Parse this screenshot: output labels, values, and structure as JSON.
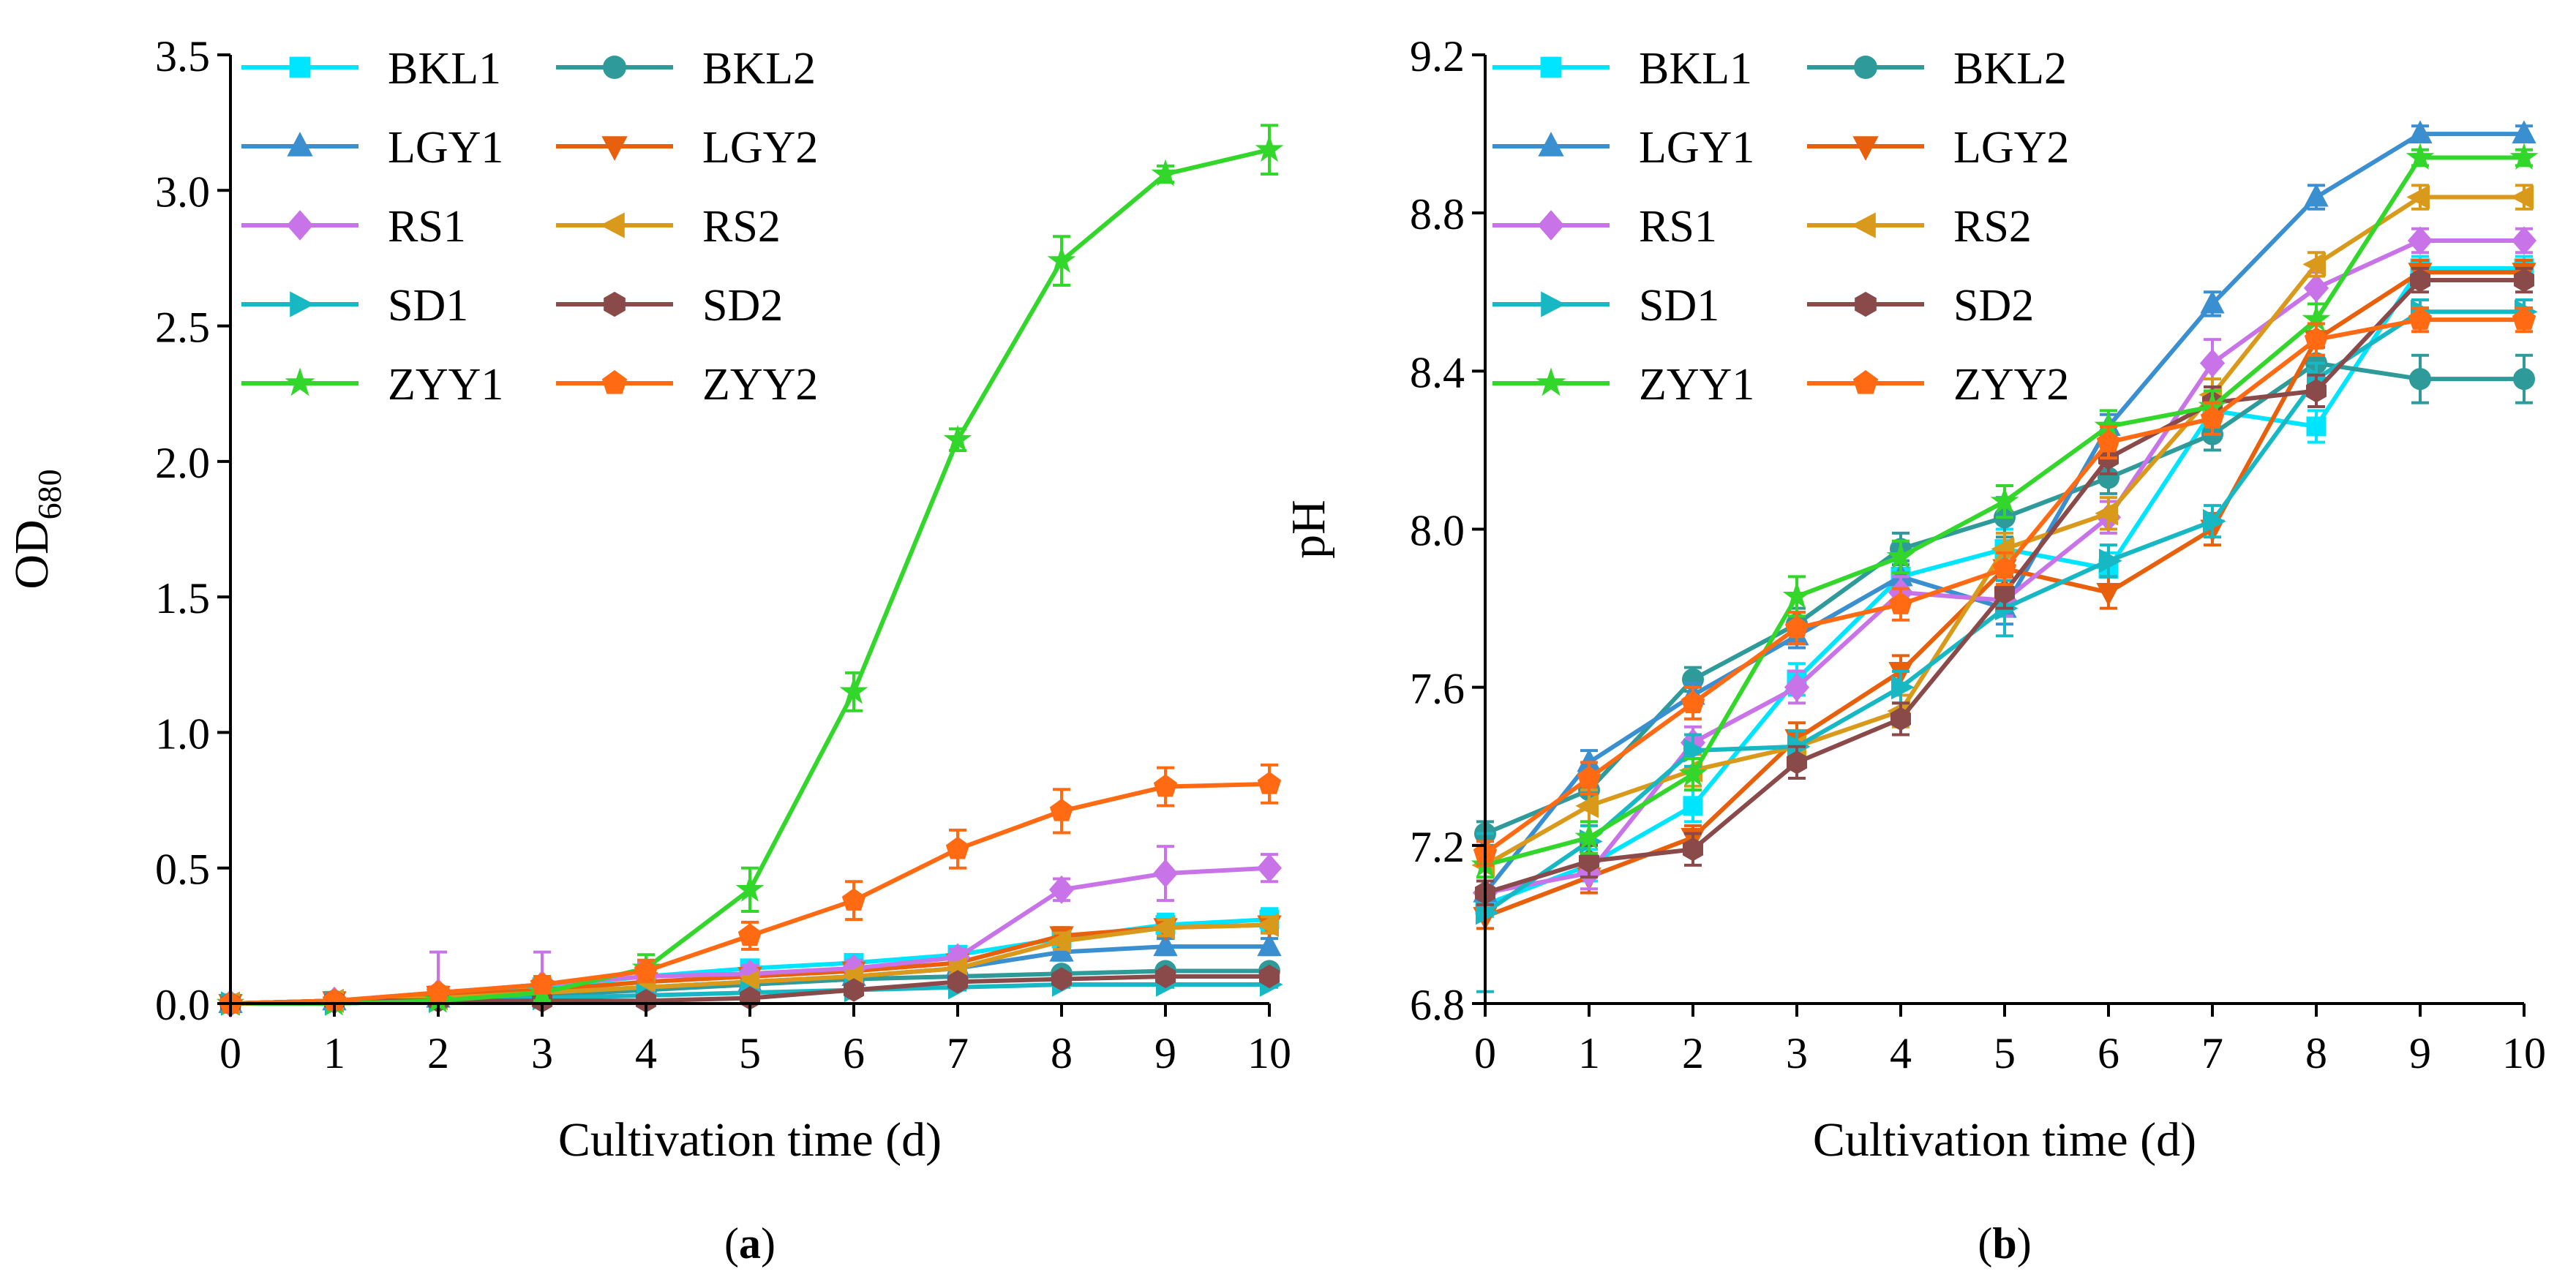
{
  "chart_data": [
    {
      "type": "line",
      "panel_label": "(a)",
      "panel_letter": "a",
      "title": "",
      "xlabel": "Cultivation time (d)",
      "ylabel": "OD",
      "ylabel_subscript": "680",
      "xlim": [
        0,
        10
      ],
      "ylim": [
        0,
        3.5
      ],
      "xticks": [
        "0",
        "1",
        "2",
        "3",
        "4",
        "5",
        "6",
        "7",
        "8",
        "9",
        "10"
      ],
      "yticks": [
        "0.0",
        "0.5",
        "1.0",
        "1.5",
        "2.0",
        "2.5",
        "3.0",
        "3.5"
      ],
      "x": [
        0,
        1,
        2,
        3,
        4,
        5,
        6,
        7,
        8,
        9,
        10
      ],
      "legend_position": "top-left",
      "series": [
        {
          "name": "BKL1",
          "color": "#00E5FF",
          "marker": "square",
          "values": [
            0.0,
            0.01,
            0.03,
            0.06,
            0.1,
            0.13,
            0.15,
            0.18,
            0.24,
            0.29,
            0.31
          ],
          "errors": [
            0.01,
            0.02,
            0.03,
            0.04,
            0.04,
            0.03,
            0.03,
            0.03,
            0.04,
            0.04,
            0.04
          ]
        },
        {
          "name": "BKL2",
          "color": "#2E9A9A",
          "marker": "circle",
          "values": [
            0.0,
            0.01,
            0.02,
            0.03,
            0.05,
            0.07,
            0.09,
            0.1,
            0.11,
            0.12,
            0.12
          ],
          "errors": [
            0.01,
            0.01,
            0.02,
            0.02,
            0.02,
            0.02,
            0.02,
            0.02,
            0.02,
            0.02,
            0.02
          ]
        },
        {
          "name": "LGY1",
          "color": "#3A8FD0",
          "marker": "triangle-up",
          "values": [
            0.0,
            0.01,
            0.02,
            0.04,
            0.06,
            0.08,
            0.1,
            0.13,
            0.19,
            0.21,
            0.21
          ],
          "errors": [
            0.01,
            0.01,
            0.02,
            0.02,
            0.02,
            0.02,
            0.02,
            0.02,
            0.03,
            0.03,
            0.03
          ]
        },
        {
          "name": "LGY2",
          "color": "#E8600C",
          "marker": "triangle-down",
          "values": [
            0.0,
            0.01,
            0.03,
            0.05,
            0.08,
            0.1,
            0.12,
            0.15,
            0.25,
            0.28,
            0.29
          ],
          "errors": [
            0.01,
            0.01,
            0.02,
            0.02,
            0.02,
            0.02,
            0.02,
            0.02,
            0.03,
            0.03,
            0.03
          ]
        },
        {
          "name": "RS1",
          "color": "#C873E8",
          "marker": "diamond",
          "values": [
            0.0,
            0.01,
            0.04,
            0.07,
            0.1,
            0.11,
            0.13,
            0.17,
            0.42,
            0.48,
            0.5
          ],
          "errors": [
            0.01,
            0.02,
            0.15,
            0.12,
            0.05,
            0.03,
            0.03,
            0.03,
            0.04,
            0.1,
            0.05
          ]
        },
        {
          "name": "RS2",
          "color": "#D99A1C",
          "marker": "triangle-left",
          "values": [
            0.0,
            0.01,
            0.02,
            0.04,
            0.06,
            0.08,
            0.1,
            0.13,
            0.23,
            0.28,
            0.29
          ],
          "errors": [
            0.01,
            0.01,
            0.02,
            0.02,
            0.02,
            0.02,
            0.02,
            0.02,
            0.03,
            0.03,
            0.03
          ]
        },
        {
          "name": "SD1",
          "color": "#17B8C4",
          "marker": "triangle-right",
          "values": [
            0.0,
            0.0,
            0.01,
            0.02,
            0.03,
            0.04,
            0.05,
            0.06,
            0.07,
            0.07,
            0.07
          ],
          "errors": [
            0.01,
            0.01,
            0.01,
            0.01,
            0.01,
            0.01,
            0.01,
            0.01,
            0.01,
            0.01,
            0.01
          ]
        },
        {
          "name": "SD2",
          "color": "#8B4A4A",
          "marker": "hexagon",
          "values": [
            0.0,
            0.01,
            0.01,
            0.01,
            0.01,
            0.02,
            0.05,
            0.08,
            0.09,
            0.1,
            0.1
          ],
          "errors": [
            0.01,
            0.01,
            0.01,
            0.01,
            0.01,
            0.01,
            0.02,
            0.02,
            0.02,
            0.02,
            0.02
          ]
        },
        {
          "name": "ZYY1",
          "color": "#33D62B",
          "marker": "star",
          "values": [
            0.0,
            0.0,
            0.01,
            0.04,
            0.13,
            0.42,
            1.15,
            2.08,
            2.74,
            3.06,
            3.15
          ],
          "errors": [
            0.01,
            0.01,
            0.02,
            0.03,
            0.05,
            0.08,
            0.07,
            0.04,
            0.09,
            0.03,
            0.09
          ]
        },
        {
          "name": "ZYY2",
          "color": "#FF6A13",
          "marker": "pentagon",
          "values": [
            0.0,
            0.01,
            0.04,
            0.07,
            0.12,
            0.25,
            0.38,
            0.57,
            0.71,
            0.8,
            0.81
          ],
          "errors": [
            0.01,
            0.01,
            0.02,
            0.03,
            0.04,
            0.05,
            0.07,
            0.07,
            0.08,
            0.07,
            0.07
          ]
        }
      ]
    },
    {
      "type": "line",
      "panel_label": "(b)",
      "panel_letter": "b",
      "title": "",
      "xlabel": "Cultivation time (d)",
      "ylabel": "pH",
      "ylabel_subscript": "",
      "xlim": [
        0,
        10
      ],
      "ylim": [
        6.8,
        9.2
      ],
      "xticks": [
        "0",
        "1",
        "2",
        "3",
        "4",
        "5",
        "6",
        "7",
        "8",
        "9",
        "10"
      ],
      "yticks": [
        "6.8",
        "7.2",
        "7.6",
        "8.0",
        "8.4",
        "8.8",
        "9.2"
      ],
      "x": [
        0,
        1,
        2,
        3,
        4,
        5,
        6,
        7,
        8,
        9,
        10
      ],
      "legend_position": "top-left",
      "series": [
        {
          "name": "BKL1",
          "color": "#00E5FF",
          "marker": "square",
          "values": [
            7.05,
            7.15,
            7.3,
            7.62,
            7.88,
            7.95,
            7.9,
            8.3,
            8.26,
            8.66,
            8.66
          ],
          "errors": [
            0.03,
            0.04,
            0.04,
            0.04,
            0.04,
            0.05,
            0.04,
            0.04,
            0.04,
            0.03,
            0.03
          ]
        },
        {
          "name": "BKL2",
          "color": "#2E9A9A",
          "marker": "circle",
          "values": [
            7.23,
            7.34,
            7.62,
            7.76,
            7.95,
            8.03,
            8.13,
            8.24,
            8.42,
            8.38,
            8.38
          ],
          "errors": [
            0.03,
            0.04,
            0.03,
            0.04,
            0.04,
            0.05,
            0.04,
            0.04,
            0.04,
            0.06,
            0.06
          ]
        },
        {
          "name": "LGY1",
          "color": "#3A8FD0",
          "marker": "triangle-up",
          "values": [
            7.08,
            7.41,
            7.58,
            7.73,
            7.88,
            7.8,
            8.26,
            8.57,
            8.84,
            9.0,
            9.0
          ],
          "errors": [
            0.03,
            0.03,
            0.03,
            0.03,
            0.04,
            0.04,
            0.03,
            0.03,
            0.03,
            0.02,
            0.02
          ]
        },
        {
          "name": "LGY2",
          "color": "#E8600C",
          "marker": "triangle-down",
          "values": [
            7.02,
            7.12,
            7.22,
            7.47,
            7.64,
            7.9,
            7.84,
            8.0,
            8.48,
            8.65,
            8.65
          ],
          "errors": [
            0.03,
            0.04,
            0.03,
            0.04,
            0.04,
            0.04,
            0.04,
            0.04,
            0.04,
            0.03,
            0.03
          ]
        },
        {
          "name": "RS1",
          "color": "#C873E8",
          "marker": "diamond",
          "values": [
            7.08,
            7.13,
            7.46,
            7.6,
            7.84,
            7.82,
            8.03,
            8.42,
            8.61,
            8.73,
            8.73
          ],
          "errors": [
            0.03,
            0.04,
            0.04,
            0.04,
            0.04,
            0.04,
            0.04,
            0.06,
            0.04,
            0.03,
            0.03
          ]
        },
        {
          "name": "RS2",
          "color": "#D99A1C",
          "marker": "triangle-left",
          "values": [
            7.15,
            7.3,
            7.39,
            7.45,
            7.54,
            7.95,
            8.04,
            8.34,
            8.67,
            8.84,
            8.84
          ],
          "errors": [
            0.03,
            0.04,
            0.04,
            0.04,
            0.04,
            0.04,
            0.04,
            0.04,
            0.03,
            0.03,
            0.03
          ]
        },
        {
          "name": "SD1",
          "color": "#17B8C4",
          "marker": "triangle-right",
          "values": [
            7.03,
            7.21,
            7.44,
            7.45,
            7.6,
            7.8,
            7.92,
            8.02,
            8.38,
            8.55,
            8.55
          ],
          "errors": [
            0.2,
            0.04,
            0.04,
            0.04,
            0.04,
            0.07,
            0.04,
            0.04,
            0.04,
            0.03,
            0.03
          ]
        },
        {
          "name": "SD2",
          "color": "#8B4A4A",
          "marker": "hexagon",
          "values": [
            7.08,
            7.16,
            7.19,
            7.41,
            7.52,
            7.84,
            8.18,
            8.32,
            8.35,
            8.63,
            8.63
          ],
          "errors": [
            0.03,
            0.04,
            0.04,
            0.04,
            0.04,
            0.04,
            0.04,
            0.04,
            0.04,
            0.03,
            0.03
          ]
        },
        {
          "name": "ZYY1",
          "color": "#33D62B",
          "marker": "star",
          "values": [
            7.15,
            7.22,
            7.38,
            7.83,
            7.93,
            8.07,
            8.26,
            8.31,
            8.53,
            8.94,
            8.94
          ],
          "errors": [
            0.03,
            0.04,
            0.04,
            0.05,
            0.04,
            0.04,
            0.04,
            0.04,
            0.04,
            0.02,
            0.02
          ]
        },
        {
          "name": "ZYY2",
          "color": "#FF6A13",
          "marker": "pentagon",
          "values": [
            7.18,
            7.37,
            7.56,
            7.75,
            7.81,
            7.9,
            8.22,
            8.28,
            8.48,
            8.53,
            8.53
          ],
          "errors": [
            0.03,
            0.04,
            0.04,
            0.04,
            0.04,
            0.04,
            0.04,
            0.04,
            0.04,
            0.03,
            0.03
          ]
        }
      ]
    }
  ]
}
